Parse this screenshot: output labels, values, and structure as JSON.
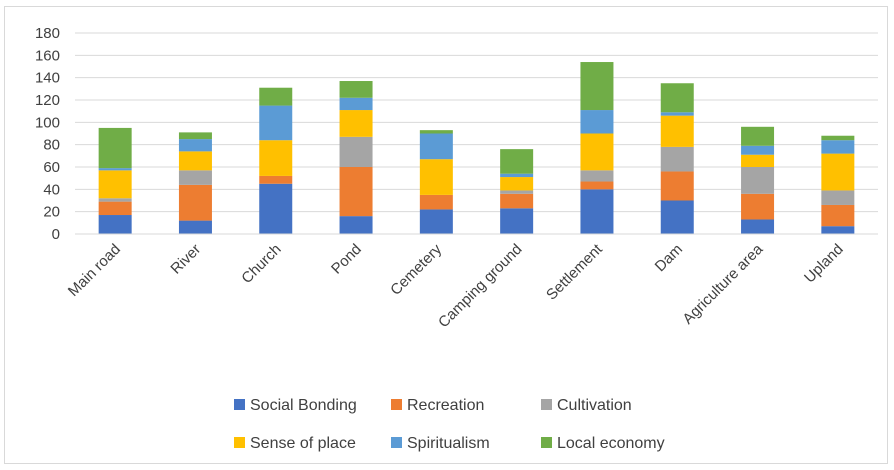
{
  "chart_data": {
    "type": "bar",
    "stacked": true,
    "title": "",
    "xlabel": "",
    "ylabel": "",
    "ylim": [
      0,
      180
    ],
    "yticks": [
      0,
      20,
      40,
      60,
      80,
      100,
      120,
      140,
      160,
      180
    ],
    "grid": true,
    "legend_position": "bottom",
    "categories": [
      "Main road",
      "River",
      "Church",
      "Pond",
      "Cemetery",
      "Camping ground",
      "Settlement",
      "Dam",
      "Agriculture  area",
      "Upland"
    ],
    "series": [
      {
        "name": "Social Bonding",
        "color": "#4472c4",
        "values": [
          17,
          12,
          45,
          16,
          22,
          23,
          40,
          30,
          13,
          7
        ]
      },
      {
        "name": "Recreation",
        "color": "#ed7d31",
        "values": [
          12,
          32,
          7,
          44,
          13,
          13,
          7,
          26,
          23,
          19
        ]
      },
      {
        "name": "Cultivation",
        "color": "#a5a5a5",
        "values": [
          3,
          13,
          0,
          27,
          0,
          3,
          10,
          22,
          24,
          13
        ]
      },
      {
        "name": "Sense of place",
        "color": "#ffc000",
        "values": [
          25,
          17,
          32,
          24,
          32,
          12,
          33,
          28,
          11,
          33
        ]
      },
      {
        "name": "Spiritualism",
        "color": "#5b9bd5",
        "values": [
          2,
          11,
          31,
          11,
          23,
          3,
          21,
          3,
          8,
          12
        ]
      },
      {
        "name": "Local economy",
        "color": "#70ad47",
        "values": [
          36,
          6,
          16,
          15,
          3,
          22,
          43,
          26,
          17,
          4
        ]
      }
    ]
  }
}
